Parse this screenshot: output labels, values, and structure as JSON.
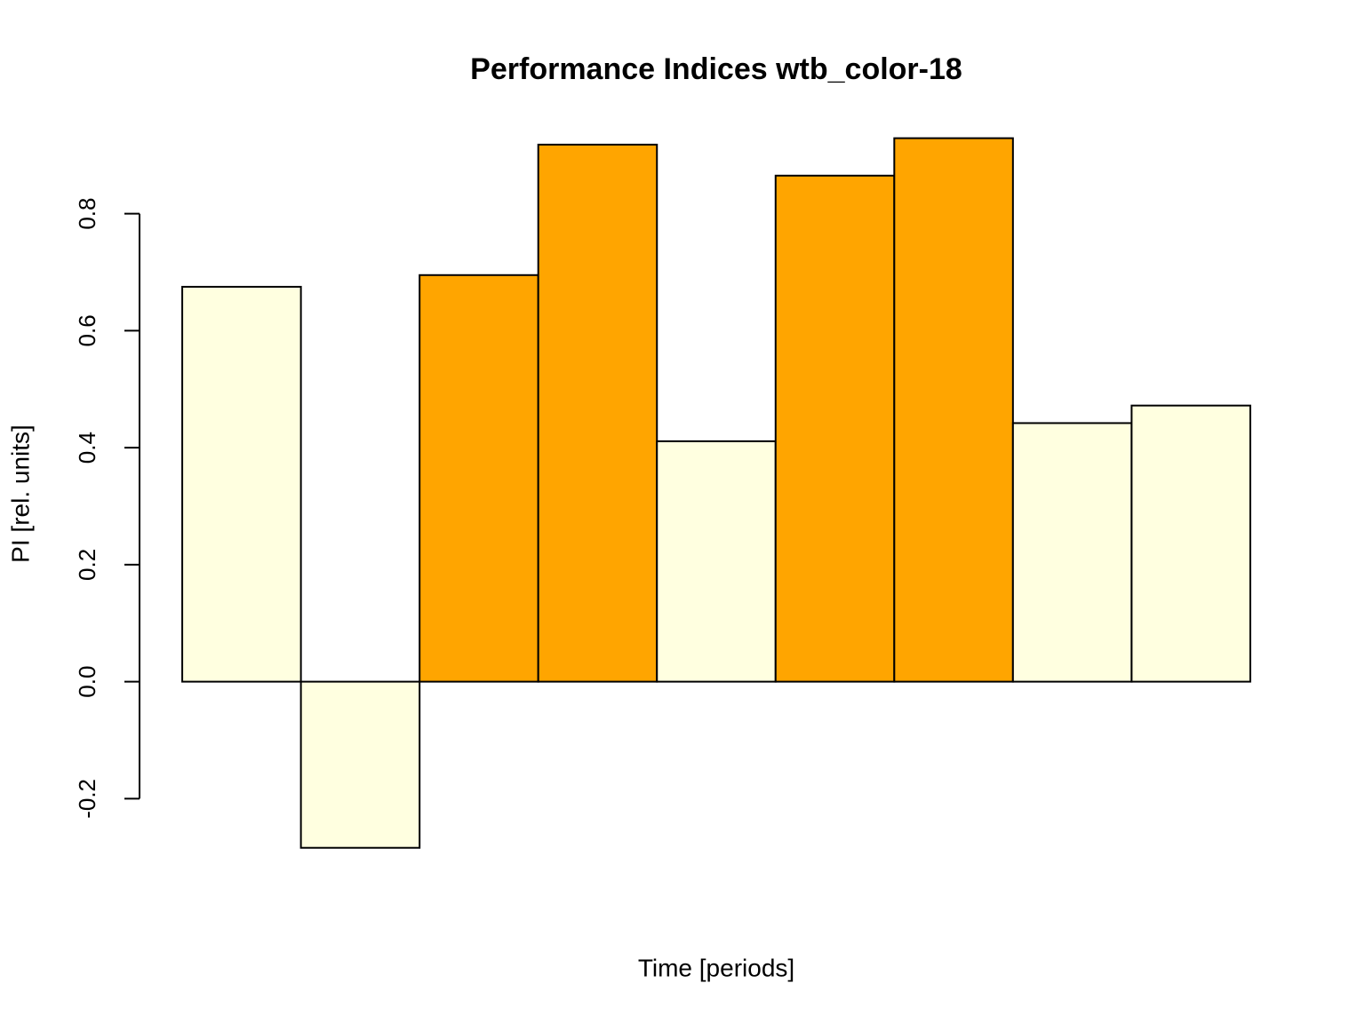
{
  "chart_data": {
    "type": "bar",
    "title": "Performance Indices wtb_color-18",
    "x_label": "Time [periods]",
    "y_label": "PI [rel. units]",
    "categories": [
      null,
      null,
      null,
      null,
      null,
      null,
      null,
      null,
      null
    ],
    "values": [
      0.675,
      -0.284,
      0.695,
      0.918,
      0.411,
      0.865,
      0.929,
      0.442,
      0.472
    ],
    "colors": [
      "#FFFFE0",
      "#FFFFE0",
      "#FFA500",
      "#FFA500",
      "#FFFFE0",
      "#FFA500",
      "#FFA500",
      "#FFFFE0",
      "#FFFFE0"
    ],
    "ylim": [
      -0.333,
      0.977
    ],
    "yticks": [
      -0.2,
      {
        "value": 0,
        "label": "0.0"
      },
      0.2,
      0.4,
      0.6,
      0.8
    ],
    "grid": false
  }
}
